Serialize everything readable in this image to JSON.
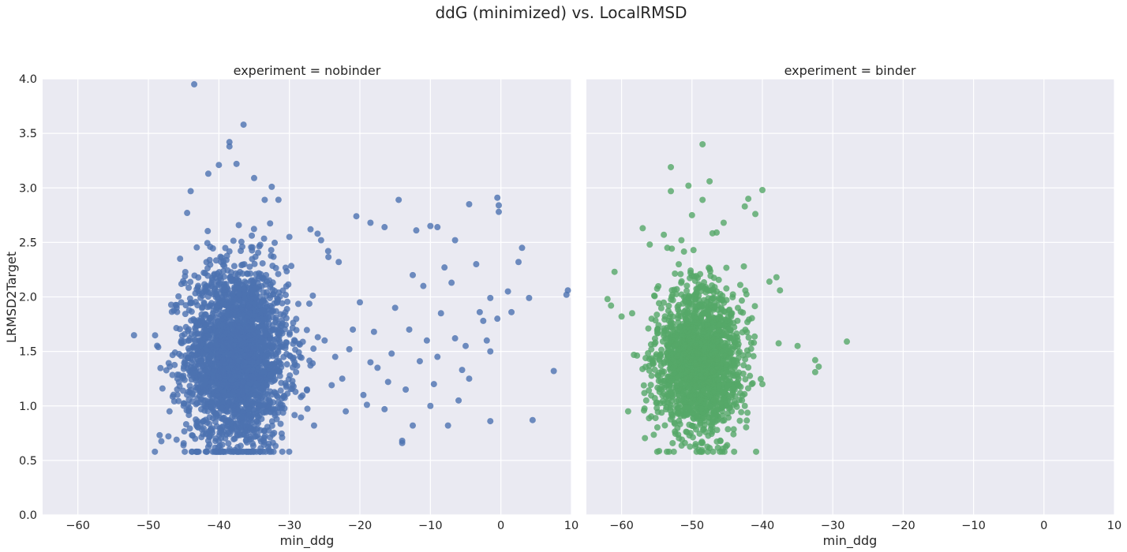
{
  "colors": {
    "panel_bg": "#EAEAF2",
    "grid": "#FFFFFF",
    "nobinder": "#4C72B0",
    "binder": "#55A868"
  },
  "chart_data": {
    "type": "scatter",
    "title": "ddG (minimized) vs. LocalRMSD",
    "xlabel": "min_ddg",
    "ylabel": "LRMSD2Target",
    "xlim": [
      -65,
      10
    ],
    "ylim": [
      0,
      4
    ],
    "x_ticks": [
      -60,
      -50,
      -40,
      -30,
      -20,
      -10,
      0,
      10
    ],
    "x_tick_labels": [
      "−60",
      "−50",
      "−40",
      "−30",
      "−20",
      "−10",
      "0",
      "10"
    ],
    "y_ticks": [
      0,
      0.5,
      1,
      1.5,
      2,
      2.5,
      3,
      3.5,
      4
    ],
    "y_tick_labels": [
      "0.0",
      "0.5",
      "1.0",
      "1.5",
      "2.0",
      "2.5",
      "3.0",
      "3.5",
      "4.0"
    ],
    "grid": true,
    "shared_y_axis": true,
    "facets": [
      {
        "title": "experiment = nobinder",
        "color": "#4C72B0",
        "cluster": {
          "center": [
            -37.5,
            1.45
          ],
          "spread": [
            3.6,
            0.42
          ],
          "count": 2600
        },
        "points": [
          [
            -43.5,
            3.95
          ],
          [
            -36.5,
            3.58
          ],
          [
            -38.5,
            3.42
          ],
          [
            -38.5,
            3.38
          ],
          [
            -40.0,
            3.21
          ],
          [
            -37.5,
            3.22
          ],
          [
            -41.5,
            3.13
          ],
          [
            -35.0,
            3.09
          ],
          [
            -32.5,
            3.01
          ],
          [
            -33.5,
            2.89
          ],
          [
            -30.0,
            2.55
          ],
          [
            -27.0,
            2.62
          ],
          [
            -26.0,
            2.58
          ],
          [
            -25.5,
            2.52
          ],
          [
            -24.5,
            2.42
          ],
          [
            -23.0,
            2.32
          ],
          [
            -20.5,
            2.74
          ],
          [
            -18.5,
            2.68
          ],
          [
            -16.5,
            2.64
          ],
          [
            -14.5,
            2.89
          ],
          [
            -12.0,
            2.61
          ],
          [
            -10.0,
            2.65
          ],
          [
            -9.0,
            2.64
          ],
          [
            -6.5,
            2.52
          ],
          [
            -4.5,
            2.85
          ],
          [
            -3.5,
            2.3
          ],
          [
            -0.5,
            2.91
          ],
          [
            -0.3,
            2.84
          ],
          [
            -0.3,
            2.78
          ],
          [
            2.5,
            2.32
          ],
          [
            3.0,
            2.45
          ],
          [
            1.0,
            2.05
          ],
          [
            -1.5,
            1.99
          ],
          [
            4.0,
            1.99
          ],
          [
            9.5,
            2.06
          ],
          [
            9.3,
            2.02
          ],
          [
            7.5,
            1.32
          ],
          [
            4.5,
            0.87
          ],
          [
            -1.5,
            0.86
          ],
          [
            -0.5,
            1.8
          ],
          [
            1.5,
            1.86
          ],
          [
            -2.0,
            1.6
          ],
          [
            -1.5,
            1.5
          ],
          [
            -4.5,
            1.25
          ],
          [
            -5.5,
            1.33
          ],
          [
            -7.5,
            0.82
          ],
          [
            -10.0,
            1.0
          ],
          [
            -12.5,
            0.82
          ],
          [
            -14.0,
            0.68
          ],
          [
            -14.0,
            0.66
          ],
          [
            -16.5,
            0.97
          ],
          [
            -19.0,
            1.01
          ],
          [
            -22.0,
            0.95
          ],
          [
            -24.0,
            1.19
          ],
          [
            -22.5,
            1.25
          ],
          [
            -21.5,
            1.52
          ],
          [
            -20.0,
            1.95
          ],
          [
            -18.0,
            1.68
          ],
          [
            -17.5,
            1.35
          ],
          [
            -15.5,
            1.48
          ],
          [
            -13.0,
            1.7
          ],
          [
            -12.5,
            2.2
          ],
          [
            -11.5,
            1.41
          ],
          [
            -11.0,
            2.1
          ],
          [
            -9.5,
            1.2
          ],
          [
            -8.5,
            1.85
          ],
          [
            -8.0,
            2.27
          ],
          [
            -7.0,
            2.13
          ],
          [
            -6.5,
            1.62
          ],
          [
            -6.0,
            1.05
          ],
          [
            -5.0,
            1.55
          ],
          [
            -3.0,
            1.86
          ],
          [
            -2.5,
            1.78
          ],
          [
            -9.0,
            1.45
          ],
          [
            -10.5,
            1.6
          ],
          [
            -13.5,
            1.15
          ],
          [
            -15.0,
            1.9
          ],
          [
            -16.0,
            1.22
          ],
          [
            -18.5,
            1.4
          ],
          [
            -19.5,
            1.1
          ],
          [
            -21.0,
            1.7
          ],
          [
            -23.5,
            1.45
          ],
          [
            -25.0,
            1.6
          ],
          [
            -26.5,
            0.82
          ],
          [
            -27.5,
            1.15
          ],
          [
            -28.5,
            1.45
          ],
          [
            -48.0,
            1.16
          ],
          [
            -47.0,
            0.95
          ],
          [
            -46.0,
            0.69
          ],
          [
            -46.0,
            1.9
          ],
          [
            -45.5,
            2.35
          ],
          [
            -44.5,
            2.77
          ],
          [
            -44.0,
            2.97
          ],
          [
            -43.0,
            0.58
          ],
          [
            -41.5,
            0.68
          ],
          [
            -35.5,
            0.58
          ]
        ]
      },
      {
        "title": "experiment = binder",
        "color": "#55A868",
        "cluster": {
          "center": [
            -49.0,
            1.42
          ],
          "spread": [
            3.0,
            0.33
          ],
          "count": 1800
        },
        "points": [
          [
            -48.5,
            3.4
          ],
          [
            -53.0,
            3.19
          ],
          [
            -50.5,
            3.02
          ],
          [
            -47.5,
            3.06
          ],
          [
            -53.0,
            2.97
          ],
          [
            -40.0,
            2.98
          ],
          [
            -42.0,
            2.9
          ],
          [
            -48.5,
            2.89
          ],
          [
            -42.5,
            2.83
          ],
          [
            -41.0,
            2.76
          ],
          [
            -50.0,
            2.75
          ],
          [
            -45.5,
            2.68
          ],
          [
            -46.5,
            2.59
          ],
          [
            -57.0,
            2.63
          ],
          [
            -56.0,
            2.48
          ],
          [
            -54.0,
            2.57
          ],
          [
            -53.5,
            2.45
          ],
          [
            -51.5,
            2.52
          ],
          [
            -61.0,
            2.23
          ],
          [
            -62.0,
            1.98
          ],
          [
            -61.5,
            1.92
          ],
          [
            -60.0,
            1.82
          ],
          [
            -58.5,
            1.85
          ],
          [
            -37.5,
            2.06
          ],
          [
            -39.0,
            2.14
          ],
          [
            -38.0,
            2.18
          ],
          [
            -35.0,
            1.55
          ],
          [
            -28.0,
            1.59
          ],
          [
            -32.5,
            1.42
          ],
          [
            -32.0,
            1.36
          ],
          [
            -32.5,
            1.31
          ],
          [
            -41.5,
            1.2
          ],
          [
            -40.0,
            1.2
          ],
          [
            -42.0,
            1.47
          ],
          [
            -56.5,
            1.05
          ],
          [
            -55.0,
            0.98
          ],
          [
            -45.0,
            0.64
          ],
          [
            -47.0,
            0.58
          ],
          [
            -48.5,
            0.66
          ],
          [
            -51.0,
            0.66
          ],
          [
            -49.5,
            0.63
          ],
          [
            -42.5,
            1.0
          ]
        ]
      }
    ]
  }
}
